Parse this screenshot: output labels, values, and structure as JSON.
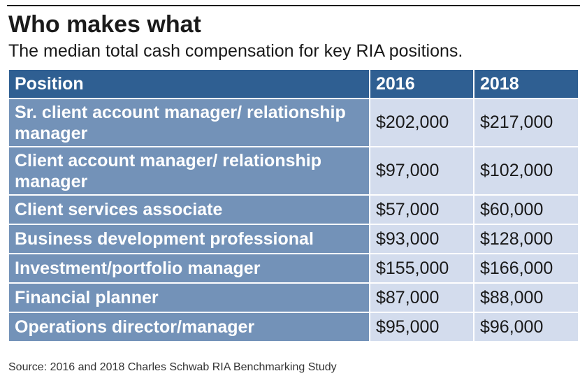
{
  "header": {
    "title": "Who makes what",
    "subtitle": "The median total cash compensation for key RIA positions."
  },
  "chart_data": {
    "type": "table",
    "title": "Who makes what",
    "subtitle": "The median total cash compensation for key RIA positions.",
    "columns": [
      "Position",
      "2016",
      "2018"
    ],
    "rows": [
      {
        "position": "Sr. client account manager/ relationship manager",
        "y2016": "$202,000",
        "y2018": "$217,000"
      },
      {
        "position": "Client account manager/ relationship manager",
        "y2016": "$97,000",
        "y2018": "$102,000"
      },
      {
        "position": "Client services associate",
        "y2016": "$57,000",
        "y2018": "$60,000"
      },
      {
        "position": "Business development professional",
        "y2016": "$93,000",
        "y2018": "$128,000"
      },
      {
        "position": "Investment/portfolio manager",
        "y2016": "$155,000",
        "y2018": "$166,000"
      },
      {
        "position": "Financial planner",
        "y2016": "$87,000",
        "y2018": "$88,000"
      },
      {
        "position": "Operations director/manager",
        "y2016": "$95,000",
        "y2018": "$96,000"
      }
    ],
    "source": "Source: 2016 and 2018 Charles Schwab RIA Benchmarking Study"
  },
  "colors": {
    "header_bg": "#2f5f92",
    "position_bg": "#7392b8",
    "value_bg": "#d3dced",
    "text_dark": "#1a1a1a",
    "text_light": "#ffffff"
  }
}
